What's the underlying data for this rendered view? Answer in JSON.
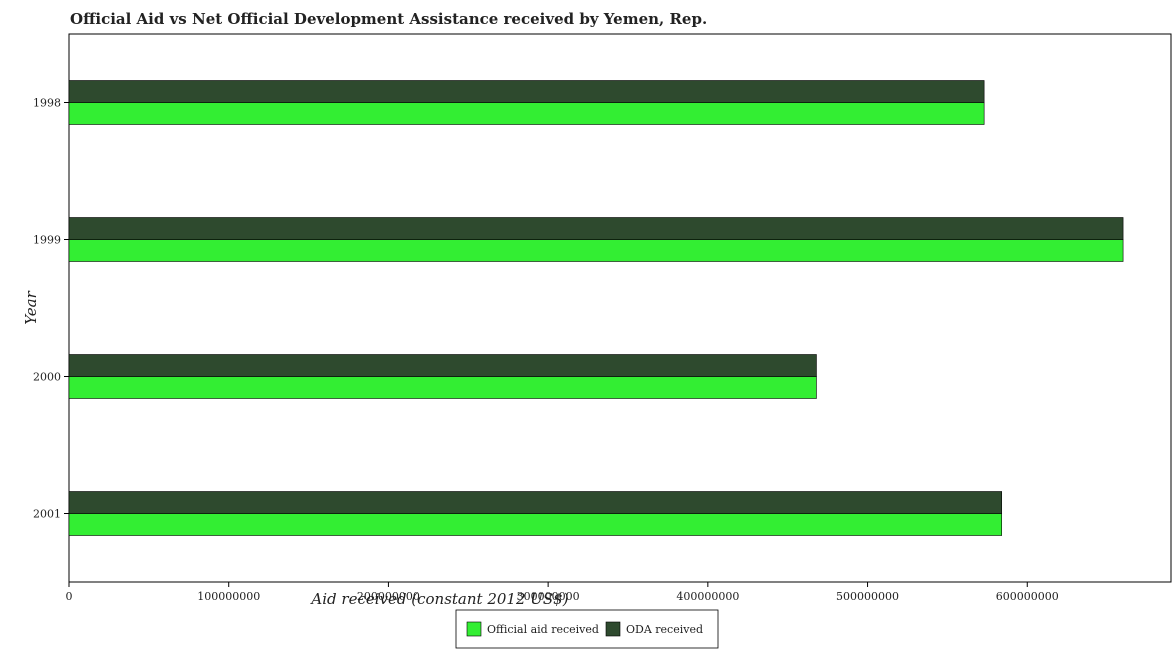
{
  "chart_data": {
    "type": "bar",
    "orientation": "horizontal",
    "title": "Official Aid vs Net Official Development Assistance received by Yemen, Rep.",
    "xlabel": "Aid received (constant 2012 US$)",
    "ylabel": "Year",
    "categories": [
      "1998",
      "1999",
      "2000",
      "2001"
    ],
    "series": [
      {
        "name": "Official aid received",
        "color": "#33ee33",
        "values": [
          573000000,
          660000000,
          468000000,
          584000000
        ]
      },
      {
        "name": "ODA received",
        "color": "#2e4a2e",
        "values": [
          573000000,
          660000000,
          468000000,
          584000000
        ]
      }
    ],
    "xlim": [
      0,
      690000000
    ],
    "xticks": [
      0,
      100000000,
      200000000,
      300000000,
      400000000,
      500000000,
      600000000
    ],
    "xtick_labels": [
      "0",
      "100000000",
      "200000000",
      "300000000",
      "400000000",
      "500000000",
      "600000000"
    ],
    "grid": false,
    "legend_position": "bottom-center"
  }
}
